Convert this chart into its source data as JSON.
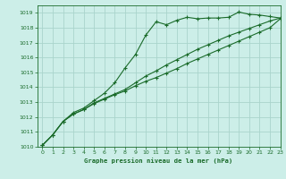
{
  "title": "Graphe pression niveau de la mer (hPa)",
  "bg_color": "#cceee8",
  "grid_color": "#aad4cc",
  "line_color": "#1a6b2a",
  "xlim": [
    -0.5,
    23
  ],
  "ylim": [
    1010,
    1019.5
  ],
  "xticks": [
    0,
    1,
    2,
    3,
    4,
    5,
    6,
    7,
    8,
    9,
    10,
    11,
    12,
    13,
    14,
    15,
    16,
    17,
    18,
    19,
    20,
    21,
    22,
    23
  ],
  "yticks": [
    1010,
    1011,
    1012,
    1013,
    1014,
    1015,
    1016,
    1017,
    1018,
    1019
  ],
  "series1_x": [
    0,
    1,
    2,
    3,
    4,
    5,
    6,
    7,
    8,
    9,
    10,
    11,
    12,
    13,
    14,
    15,
    16,
    17,
    18,
    19,
    20,
    21,
    22,
    23
  ],
  "series1_y": [
    1010.1,
    1010.8,
    1011.7,
    1012.3,
    1012.6,
    1013.1,
    1013.6,
    1014.3,
    1015.3,
    1016.2,
    1017.5,
    1018.4,
    1018.2,
    1018.5,
    1018.7,
    1018.6,
    1018.65,
    1018.65,
    1018.7,
    1019.05,
    1018.9,
    1018.85,
    1018.75,
    1018.65
  ],
  "series2_x": [
    0,
    1,
    2,
    3,
    4,
    5,
    6,
    7,
    8,
    9,
    10,
    11,
    12,
    13,
    14,
    15,
    16,
    17,
    18,
    19,
    20,
    21,
    22,
    23
  ],
  "series2_y": [
    1010.1,
    1010.8,
    1011.7,
    1012.2,
    1012.5,
    1012.95,
    1013.25,
    1013.55,
    1013.85,
    1014.3,
    1014.75,
    1015.1,
    1015.5,
    1015.85,
    1016.2,
    1016.55,
    1016.85,
    1017.15,
    1017.45,
    1017.7,
    1017.95,
    1018.2,
    1018.45,
    1018.65
  ],
  "series3_x": [
    0,
    1,
    2,
    3,
    4,
    5,
    6,
    7,
    8,
    9,
    10,
    11,
    12,
    13,
    14,
    15,
    16,
    17,
    18,
    19,
    20,
    21,
    22,
    23
  ],
  "series3_y": [
    1010.1,
    1010.8,
    1011.7,
    1012.2,
    1012.5,
    1012.9,
    1013.2,
    1013.5,
    1013.75,
    1014.1,
    1014.4,
    1014.65,
    1014.95,
    1015.25,
    1015.6,
    1015.9,
    1016.2,
    1016.5,
    1016.8,
    1017.1,
    1017.4,
    1017.7,
    1018.0,
    1018.6
  ]
}
